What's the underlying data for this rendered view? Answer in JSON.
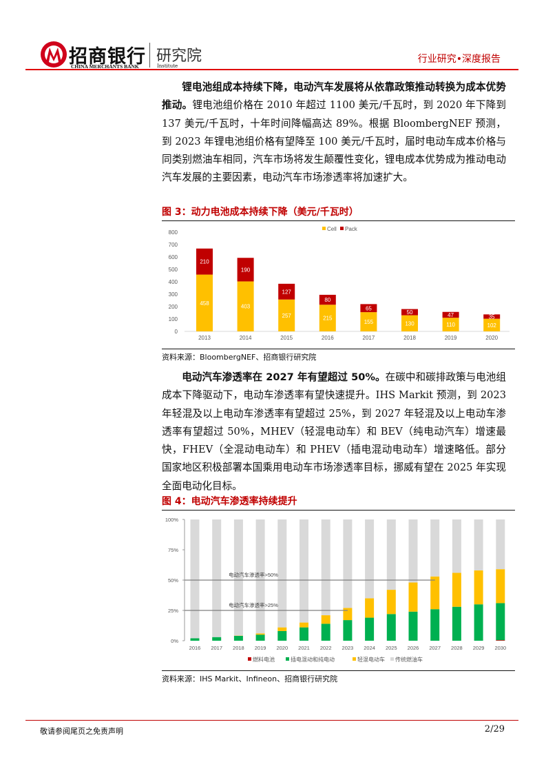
{
  "header": {
    "logo_cn": "招商银行",
    "logo_en": "CHINA MERCHANTS BANK",
    "institute_cn": "研究院",
    "institute_en": "Institute",
    "report_type": "行业研究•深度报告"
  },
  "para1": {
    "bold": "锂电池组成本持续下降，电动汽车发展将从依靠政策推动转换为成本优势推动。",
    "text": "锂电池组价格在 2010 年超过 1100 美元/千瓦时，到 2020 年下降到 137 美元/千瓦时，十年时间降幅高达 89%。根据 BloombergNEF 预测，到 2023 年锂电池组价格有望降至 100 美元/千瓦时，届时电动车成本价格与同类别燃油车相同，汽车市场将发生颠覆性变化，锂电成本优势成为推动电动汽车发展的主要因素，电动汽车市场渗透率将加速扩大。"
  },
  "para2": {
    "bold": "电动汽车渗透率在 2027 年有望超过 50%。",
    "text": "在碳中和碳排政策与电池组成本下降驱动下，电动车渗透率有望快速提升。IHS Markit 预测，到 2023 年轻混及以上电动车渗透率有望超过 25%，到 2027 年轻混及以上电动车渗透率有望超过 50%，MHEV（轻混电动车）和 BEV（纯电动汽车）增速最快，FHEV（全混动电动车）和 PHEV（插电混动电动车）增速略低。部分国家地区积极部署本国乘用电动车市场渗透率目标，挪威有望在 2025 年实现全面电动化目标。"
  },
  "chart_data": [
    {
      "type": "bar",
      "stacked": true,
      "title": "图 3：动力电池成本持续下降（美元/千瓦时）",
      "source": "资料来源：BloombergNEF、招商银行研究院",
      "categories": [
        "2013",
        "2014",
        "2015",
        "2016",
        "2017",
        "2018",
        "2019",
        "2020"
      ],
      "series": [
        {
          "name": "Cell",
          "color": "#ffc000",
          "values": [
            458,
            403,
            257,
            215,
            155,
            130,
            110,
            102
          ]
        },
        {
          "name": "Pack",
          "color": "#c00000",
          "values": [
            210,
            190,
            127,
            80,
            65,
            50,
            47,
            35
          ]
        }
      ],
      "ylim": [
        0,
        800
      ],
      "yticks": [
        "0",
        "100",
        "200",
        "300",
        "400",
        "500",
        "600",
        "700",
        "800"
      ],
      "legend": "top"
    },
    {
      "type": "bar",
      "stacked": true,
      "title": "图 4：电动汽车渗透率持续提升",
      "source": "资料来源：IHS Markit、Infineon、招商银行研究院",
      "categories": [
        "2016",
        "2017",
        "2018",
        "2019",
        "2020",
        "2021",
        "2022",
        "2023",
        "2024",
        "2025",
        "2026",
        "2027",
        "2028",
        "2029",
        "2030"
      ],
      "series": [
        {
          "name": "燃料电池",
          "color": "#c00000",
          "values": [
            0,
            0,
            0,
            0,
            0,
            0,
            0,
            0,
            0,
            0,
            0,
            0,
            0,
            0,
            0.5
          ]
        },
        {
          "name": "插电混动和纯电动",
          "color": "#00b050",
          "values": [
            2,
            3,
            4,
            5,
            8,
            11,
            14,
            17,
            19,
            22,
            24,
            26,
            28,
            30,
            30.5
          ]
        },
        {
          "name": "轻混电动车",
          "color": "#ffc000",
          "values": [
            0,
            0,
            0.2,
            1,
            3,
            4,
            7,
            10,
            16,
            20,
            24,
            27,
            28,
            28,
            28
          ]
        },
        {
          "name": "传统燃油车",
          "color": "#d9d9d9",
          "values": [
            98,
            97,
            95.8,
            94,
            89,
            85,
            79,
            73,
            65,
            58,
            52,
            47,
            44,
            42,
            41
          ]
        }
      ],
      "ylim": [
        0,
        100
      ],
      "yticks": [
        "0%",
        "25%",
        "50%",
        "75%",
        "100%"
      ],
      "legend": "bottom",
      "annotations": [
        {
          "text": "电动汽车渗透率>50%",
          "y": 50,
          "until": "2027"
        },
        {
          "text": "电动汽车渗透率>25%",
          "y": 25,
          "until": "2023"
        }
      ]
    }
  ],
  "footer": {
    "disclaimer": "敬请参阅尾页之免责声明",
    "page": "2/29"
  }
}
